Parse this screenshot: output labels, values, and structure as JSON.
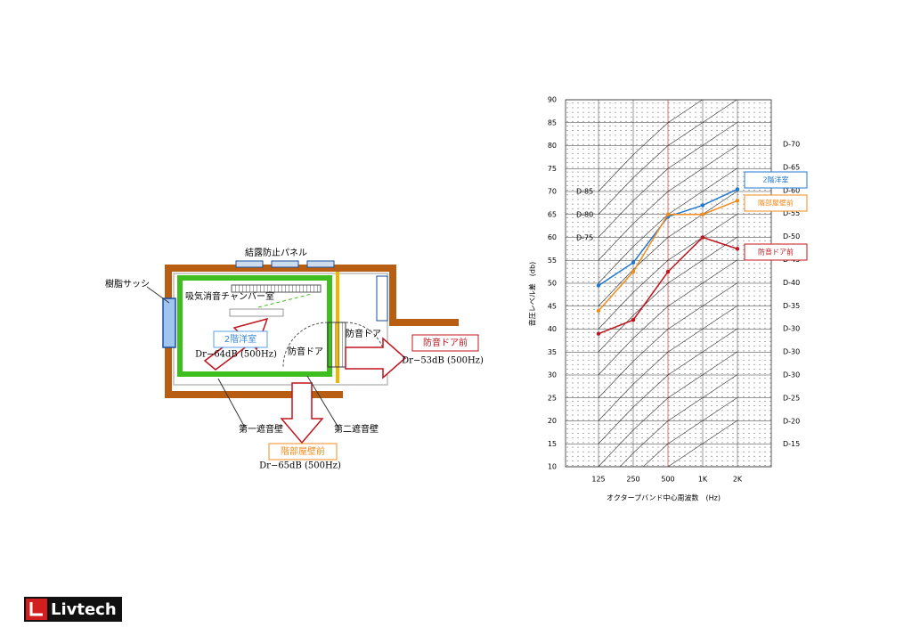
{
  "diagram": {
    "panel_label": "結露防止パネル",
    "sash_label": "樹脂サッシ",
    "chamber_label": "吸気消音チャンバー室",
    "door_label_inner": "防音ドア",
    "door_label_outer": "防音ドア",
    "room_label": "2階洋室",
    "room_value": "Dr−64dB (500Hz)",
    "door_front_label": "防音ドア前",
    "door_front_value": "Dr−53dB (500Hz)",
    "wall1_label": "第一遮音壁",
    "wall2_label": "第二遮音壁",
    "wall_front_label": "階部屋壁前",
    "wall_front_value": "Dr−65dB (500Hz)"
  },
  "chart_data": {
    "type": "line",
    "x_label": "オクタープバンド中心周波数　(Hz)",
    "y_label": "音圧レベル差　(db)",
    "categories": [
      "125",
      "250",
      "500",
      "1K",
      "2K"
    ],
    "ylim": [
      10,
      90
    ],
    "yticks": [
      10,
      15,
      20,
      25,
      30,
      35,
      40,
      45,
      50,
      55,
      60,
      65,
      70,
      75,
      80,
      85,
      90
    ],
    "grid": true,
    "highlight_category": "500",
    "right_labels": [
      "D-70",
      "D-65",
      "D-60",
      "D-55",
      "D-50",
      "D-45",
      "D-40",
      "D-35",
      "D-30",
      "D-30",
      "D-30",
      "D-25",
      "D-20",
      "D-15"
    ],
    "inner_labels": [
      "D-85",
      "D-80",
      "D-75"
    ],
    "series": [
      {
        "name": "2階洋室",
        "color": "#1f78d1",
        "values": [
          49.5,
          54.5,
          64.5,
          67,
          70.5
        ]
      },
      {
        "name": "階部屋壁前",
        "color": "#f08c1e",
        "values": [
          44,
          52.5,
          65,
          65,
          68
        ]
      },
      {
        "name": "防音ドア前",
        "color": "#c0141e",
        "values": [
          39,
          42,
          52.5,
          60,
          57.5
        ]
      }
    ]
  },
  "logo": "Livtech"
}
